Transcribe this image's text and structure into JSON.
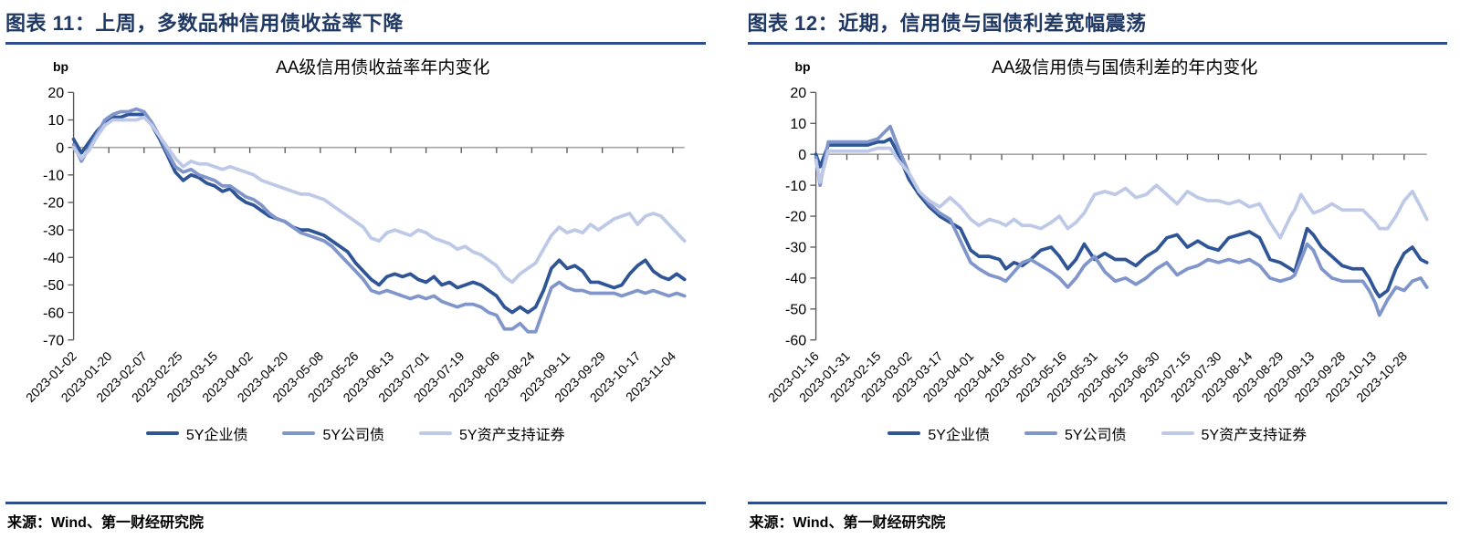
{
  "colors": {
    "header_text": "#203864",
    "rule": "#2e4c8e",
    "axis": "#595959",
    "zero_line": "#a6a6a6"
  },
  "panels": [
    {
      "header": "图表 11：上周，多数品种信用债收益率下降",
      "source": "来源：Wind、第一财经研究院"
    },
    {
      "header": "图表 12：近期，信用债与国债利差宽幅震荡",
      "source": "来源：Wind、第一财经研究院"
    }
  ],
  "chart_data": [
    {
      "type": "line",
      "title": "AA级信用债收益率年内变化",
      "ylabel": "bp",
      "ylim": [
        -70,
        20
      ],
      "ytick_step": 10,
      "grid": false,
      "legend_position": "bottom",
      "x_tick_labels": [
        "2023-01-02",
        "2023-01-20",
        "2023-02-07",
        "2023-02-25",
        "2023-03-15",
        "2023-04-02",
        "2023-04-20",
        "2023-05-08",
        "2023-05-26",
        "2023-06-13",
        "2023-07-01",
        "2023-07-19",
        "2023-08-06",
        "2023-08-24",
        "2023-09-11",
        "2023-09-29",
        "2023-10-17",
        "2023-11-04"
      ],
      "x": [
        "2023-01-02",
        "2023-01-06",
        "2023-01-10",
        "2023-01-14",
        "2023-01-18",
        "2023-01-22",
        "2023-01-26",
        "2023-01-30",
        "2023-02-03",
        "2023-02-07",
        "2023-02-11",
        "2023-02-15",
        "2023-02-19",
        "2023-02-23",
        "2023-02-27",
        "2023-03-03",
        "2023-03-07",
        "2023-03-11",
        "2023-03-15",
        "2023-03-19",
        "2023-03-23",
        "2023-03-27",
        "2023-03-31",
        "2023-04-04",
        "2023-04-08",
        "2023-04-12",
        "2023-04-16",
        "2023-04-20",
        "2023-04-24",
        "2023-04-28",
        "2023-05-02",
        "2023-05-06",
        "2023-05-10",
        "2023-05-14",
        "2023-05-18",
        "2023-05-22",
        "2023-05-26",
        "2023-05-30",
        "2023-06-03",
        "2023-06-07",
        "2023-06-11",
        "2023-06-15",
        "2023-06-19",
        "2023-06-23",
        "2023-06-27",
        "2023-07-01",
        "2023-07-05",
        "2023-07-09",
        "2023-07-13",
        "2023-07-17",
        "2023-07-21",
        "2023-07-25",
        "2023-07-29",
        "2023-08-02",
        "2023-08-06",
        "2023-08-10",
        "2023-08-14",
        "2023-08-18",
        "2023-08-22",
        "2023-08-26",
        "2023-08-30",
        "2023-09-03",
        "2023-09-07",
        "2023-09-11",
        "2023-09-15",
        "2023-09-19",
        "2023-09-23",
        "2023-09-27",
        "2023-10-01",
        "2023-10-05",
        "2023-10-09",
        "2023-10-13",
        "2023-10-17",
        "2023-10-21",
        "2023-10-25",
        "2023-10-29",
        "2023-11-02",
        "2023-11-06",
        "2023-11-10"
      ],
      "series": [
        {
          "name": "5Y企业债",
          "color": "#2f5597",
          "values": [
            3,
            -2,
            2,
            6,
            9,
            11,
            11,
            12,
            12,
            12,
            8,
            3,
            -3,
            -9,
            -12,
            -10,
            -11,
            -13,
            -14,
            -16,
            -15,
            -18,
            -20,
            -21,
            -23,
            -25,
            -26,
            -27,
            -29,
            -30,
            -30,
            -31,
            -32,
            -34,
            -36,
            -38,
            -42,
            -45,
            -48,
            -50,
            -47,
            -46,
            -47,
            -46,
            -48,
            -49,
            -47,
            -50,
            -49,
            -51,
            -50,
            -49,
            -50,
            -52,
            -54,
            -58,
            -60,
            -58,
            -60,
            -58,
            -52,
            -44,
            -41,
            -44,
            -43,
            -45,
            -49,
            -49,
            -50,
            -51,
            -50,
            -46,
            -43,
            -41,
            -45,
            -47,
            -48,
            -46,
            -48
          ]
        },
        {
          "name": "5Y公司债",
          "color": "#8096cb",
          "values": [
            1,
            -5,
            0,
            5,
            10,
            12,
            13,
            13,
            14,
            13,
            9,
            4,
            -2,
            -7,
            -9,
            -8,
            -10,
            -11,
            -12,
            -14,
            -14,
            -16,
            -18,
            -19,
            -21,
            -24,
            -26,
            -27,
            -29,
            -31,
            -32,
            -33,
            -34,
            -36,
            -39,
            -42,
            -45,
            -48,
            -52,
            -53,
            -52,
            -53,
            -54,
            -55,
            -54,
            -55,
            -54,
            -56,
            -57,
            -58,
            -57,
            -57,
            -58,
            -60,
            -61,
            -66,
            -66,
            -64,
            -67,
            -67,
            -59,
            -51,
            -49,
            -51,
            -52,
            -52,
            -53,
            -53,
            -53,
            -53,
            -54,
            -53,
            -52,
            -53,
            -52,
            -53,
            -54,
            -53,
            -54
          ]
        },
        {
          "name": "5Y资产支持证券",
          "color": "#bdc9e6",
          "values": [
            0,
            -4,
            -1,
            4,
            8,
            10,
            10,
            10,
            10,
            11,
            8,
            4,
            0,
            -4,
            -7,
            -5,
            -6,
            -6,
            -7,
            -8,
            -7,
            -8,
            -9,
            -10,
            -12,
            -13,
            -14,
            -15,
            -16,
            -17,
            -17,
            -18,
            -19,
            -21,
            -23,
            -25,
            -27,
            -29,
            -33,
            -34,
            -31,
            -30,
            -31,
            -32,
            -30,
            -31,
            -33,
            -34,
            -35,
            -37,
            -36,
            -38,
            -39,
            -41,
            -43,
            -47,
            -49,
            -46,
            -44,
            -42,
            -37,
            -32,
            -29,
            -31,
            -30,
            -31,
            -28,
            -30,
            -28,
            -26,
            -25,
            -24,
            -28,
            -25,
            -24,
            -25,
            -28,
            -31,
            -34
          ]
        }
      ]
    },
    {
      "type": "line",
      "title": "AA级信用债与国债利差的年内变化",
      "ylabel": "bp",
      "ylim": [
        -60,
        20
      ],
      "ytick_step": 10,
      "grid": false,
      "legend_position": "bottom",
      "x_tick_labels": [
        "2023-01-16",
        "2023-01-31",
        "2023-02-15",
        "2023-03-02",
        "2023-03-17",
        "2023-04-01",
        "2023-04-16",
        "2023-05-01",
        "2023-05-16",
        "2023-05-31",
        "2023-06-15",
        "2023-06-30",
        "2023-07-15",
        "2023-07-30",
        "2023-08-14",
        "2023-08-29",
        "2023-09-13",
        "2023-09-28",
        "2023-10-13",
        "2023-10-28"
      ],
      "x": [
        "2023-01-16",
        "2023-01-18",
        "2023-01-22",
        "2023-01-26",
        "2023-01-31",
        "2023-02-05",
        "2023-02-10",
        "2023-02-15",
        "2023-02-18",
        "2023-02-21",
        "2023-02-25",
        "2023-03-02",
        "2023-03-07",
        "2023-03-12",
        "2023-03-17",
        "2023-03-22",
        "2023-03-27",
        "2023-04-01",
        "2023-04-05",
        "2023-04-10",
        "2023-04-15",
        "2023-04-18",
        "2023-04-22",
        "2023-04-26",
        "2023-04-30",
        "2023-05-05",
        "2023-05-10",
        "2023-05-14",
        "2023-05-18",
        "2023-05-22",
        "2023-05-26",
        "2023-05-31",
        "2023-06-05",
        "2023-06-10",
        "2023-06-15",
        "2023-06-20",
        "2023-06-25",
        "2023-06-30",
        "2023-07-05",
        "2023-07-10",
        "2023-07-15",
        "2023-07-20",
        "2023-07-25",
        "2023-07-30",
        "2023-08-04",
        "2023-08-09",
        "2023-08-14",
        "2023-08-19",
        "2023-08-24",
        "2023-08-29",
        "2023-09-03",
        "2023-09-05",
        "2023-09-08",
        "2023-09-11",
        "2023-09-14",
        "2023-09-18",
        "2023-09-23",
        "2023-09-28",
        "2023-10-03",
        "2023-10-08",
        "2023-10-11",
        "2023-10-14",
        "2023-10-16",
        "2023-10-20",
        "2023-10-24",
        "2023-10-28",
        "2023-11-01",
        "2023-11-05",
        "2023-11-08"
      ],
      "series": [
        {
          "name": "5Y企业债",
          "color": "#2f5597",
          "values": [
            0,
            -4,
            3,
            3,
            3,
            3,
            3,
            4,
            4,
            5,
            0,
            -8,
            -13,
            -17,
            -20,
            -22,
            -24,
            -31,
            -33,
            -33,
            -34,
            -37,
            -35,
            -36,
            -34,
            -31,
            -30,
            -33,
            -37,
            -34,
            -29,
            -34,
            -32,
            -34,
            -34,
            -36,
            -33,
            -31,
            -27,
            -26,
            -30,
            -28,
            -30,
            -31,
            -27,
            -26,
            -25,
            -27,
            -34,
            -35,
            -37,
            -38,
            -31,
            -24,
            -26,
            -30,
            -33,
            -36,
            -37,
            -37,
            -40,
            -44,
            -46,
            -44,
            -37,
            -32,
            -30,
            -34,
            -35
          ]
        },
        {
          "name": "5Y公司债",
          "color": "#8096cb",
          "values": [
            -1,
            -10,
            4,
            4,
            4,
            4,
            4,
            5,
            7,
            9,
            2,
            -6,
            -12,
            -16,
            -19,
            -21,
            -28,
            -35,
            -37,
            -39,
            -40,
            -41,
            -38,
            -35,
            -34,
            -36,
            -38,
            -40,
            -43,
            -40,
            -36,
            -33,
            -38,
            -41,
            -40,
            -42,
            -40,
            -37,
            -35,
            -39,
            -37,
            -36,
            -34,
            -35,
            -34,
            -35,
            -34,
            -36,
            -40,
            -41,
            -40,
            -39,
            -34,
            -29,
            -31,
            -37,
            -40,
            -41,
            -41,
            -41,
            -44,
            -48,
            -52,
            -47,
            -43,
            -44,
            -41,
            -40,
            -43
          ]
        },
        {
          "name": "5Y资产支持证券",
          "color": "#bdc9e6",
          "values": [
            -2,
            -9,
            1,
            1,
            1,
            1,
            1,
            2,
            2,
            2,
            -2,
            -6,
            -12,
            -15,
            -17,
            -14,
            -17,
            -21,
            -23,
            -21,
            -22,
            -23,
            -21,
            -23,
            -23,
            -24,
            -22,
            -20,
            -24,
            -22,
            -19,
            -13,
            -12,
            -13,
            -11,
            -14,
            -13,
            -10,
            -13,
            -16,
            -12,
            -14,
            -15,
            -15,
            -16,
            -15,
            -17,
            -16,
            -22,
            -27,
            -20,
            -18,
            -13,
            -16,
            -19,
            -18,
            -16,
            -18,
            -18,
            -18,
            -20,
            -22,
            -24,
            -24,
            -20,
            -15,
            -12,
            -17,
            -21
          ]
        }
      ]
    }
  ]
}
